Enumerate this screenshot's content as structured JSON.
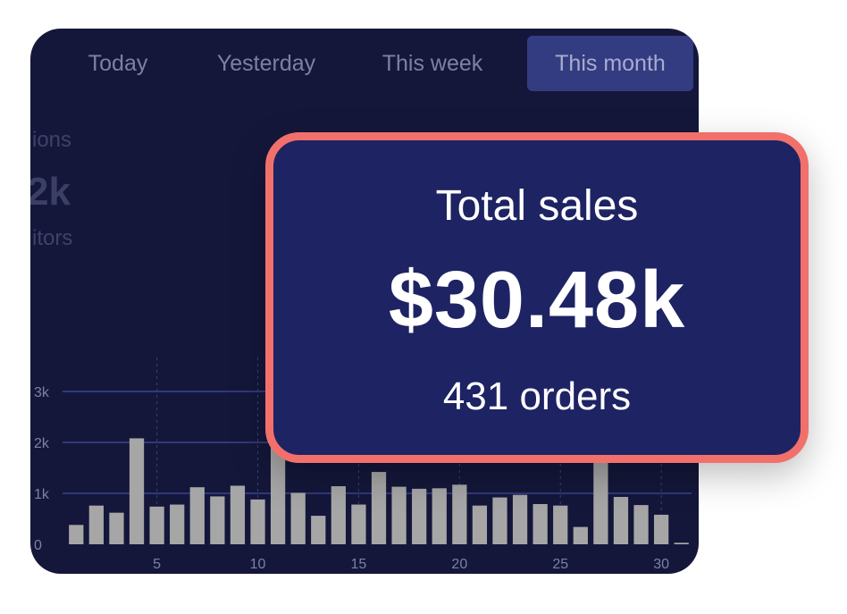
{
  "tabs": [
    {
      "label": "Today",
      "active": false
    },
    {
      "label": "Yesterday",
      "active": false
    },
    {
      "label": "This week",
      "active": false
    },
    {
      "label": "This month",
      "active": true
    }
  ],
  "background_stats": {
    "label_top": "ions",
    "value": "2k",
    "label_bottom": "itors"
  },
  "summary_card": {
    "title": "Total sales",
    "value": "$30.48k",
    "subtitle": "431 orders"
  },
  "colors": {
    "panel_bg": "#14173a",
    "active_tab": "#333c80",
    "card_bg": "#1d2363",
    "card_border": "#f2706b",
    "bar": "#a6a6a6",
    "gridline": "#3a4391"
  },
  "chart_data": {
    "type": "bar",
    "x": [
      1,
      2,
      3,
      4,
      5,
      6,
      7,
      8,
      9,
      10,
      11,
      12,
      13,
      14,
      15,
      16,
      17,
      18,
      19,
      20,
      21,
      22,
      23,
      24,
      25,
      26,
      27,
      28,
      29,
      30,
      31
    ],
    "values": [
      380,
      760,
      620,
      2080,
      740,
      780,
      1120,
      940,
      1150,
      880,
      1940,
      1010,
      560,
      1140,
      780,
      1420,
      1130,
      1090,
      1100,
      1170,
      760,
      920,
      970,
      790,
      760,
      340,
      2000,
      930,
      770,
      580,
      30
    ],
    "x_ticks": [
      5,
      10,
      15,
      20,
      25,
      30
    ],
    "y_ticks": [
      0,
      1000,
      2000,
      3000
    ],
    "y_tick_labels": [
      "0",
      "1k",
      "2k",
      "3k"
    ],
    "ylim": [
      0,
      3000
    ],
    "grid": true
  }
}
